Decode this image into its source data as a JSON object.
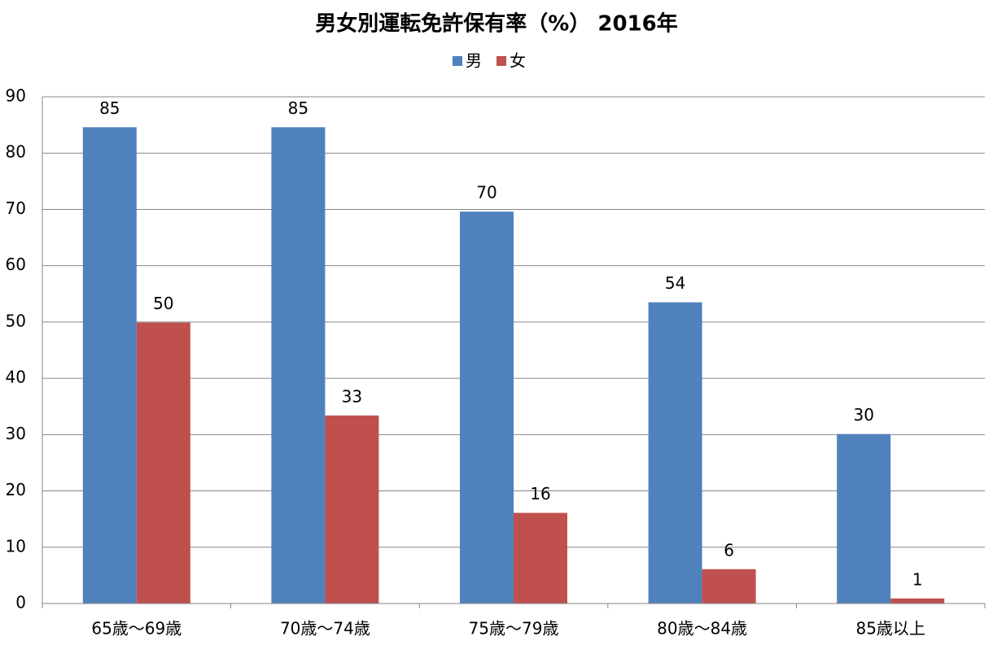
{
  "chart_data": {
    "type": "bar",
    "title": "男女別運転免許保有率（%） 2016年",
    "categories": [
      "65歳～69歳",
      "70歳～74歳",
      "75歳～79歳",
      "80歳～84歳",
      "85歳以上"
    ],
    "series": [
      {
        "name": "男",
        "color": "#4f81bd",
        "values": [
          84.6,
          84.6,
          69.6,
          53.5,
          30.1
        ],
        "value_labels": [
          "85",
          "85",
          "70",
          "54",
          "30"
        ]
      },
      {
        "name": "女",
        "color": "#c0504d",
        "values": [
          49.9,
          33.4,
          16.1,
          6.1,
          0.9
        ],
        "value_labels": [
          "50",
          "33",
          "16",
          "6",
          "1"
        ]
      }
    ],
    "ylim": [
      0,
      90
    ],
    "yticks": [
      0,
      10,
      20,
      30,
      40,
      50,
      60,
      70,
      80,
      90
    ],
    "grid": true,
    "legend": "top"
  }
}
